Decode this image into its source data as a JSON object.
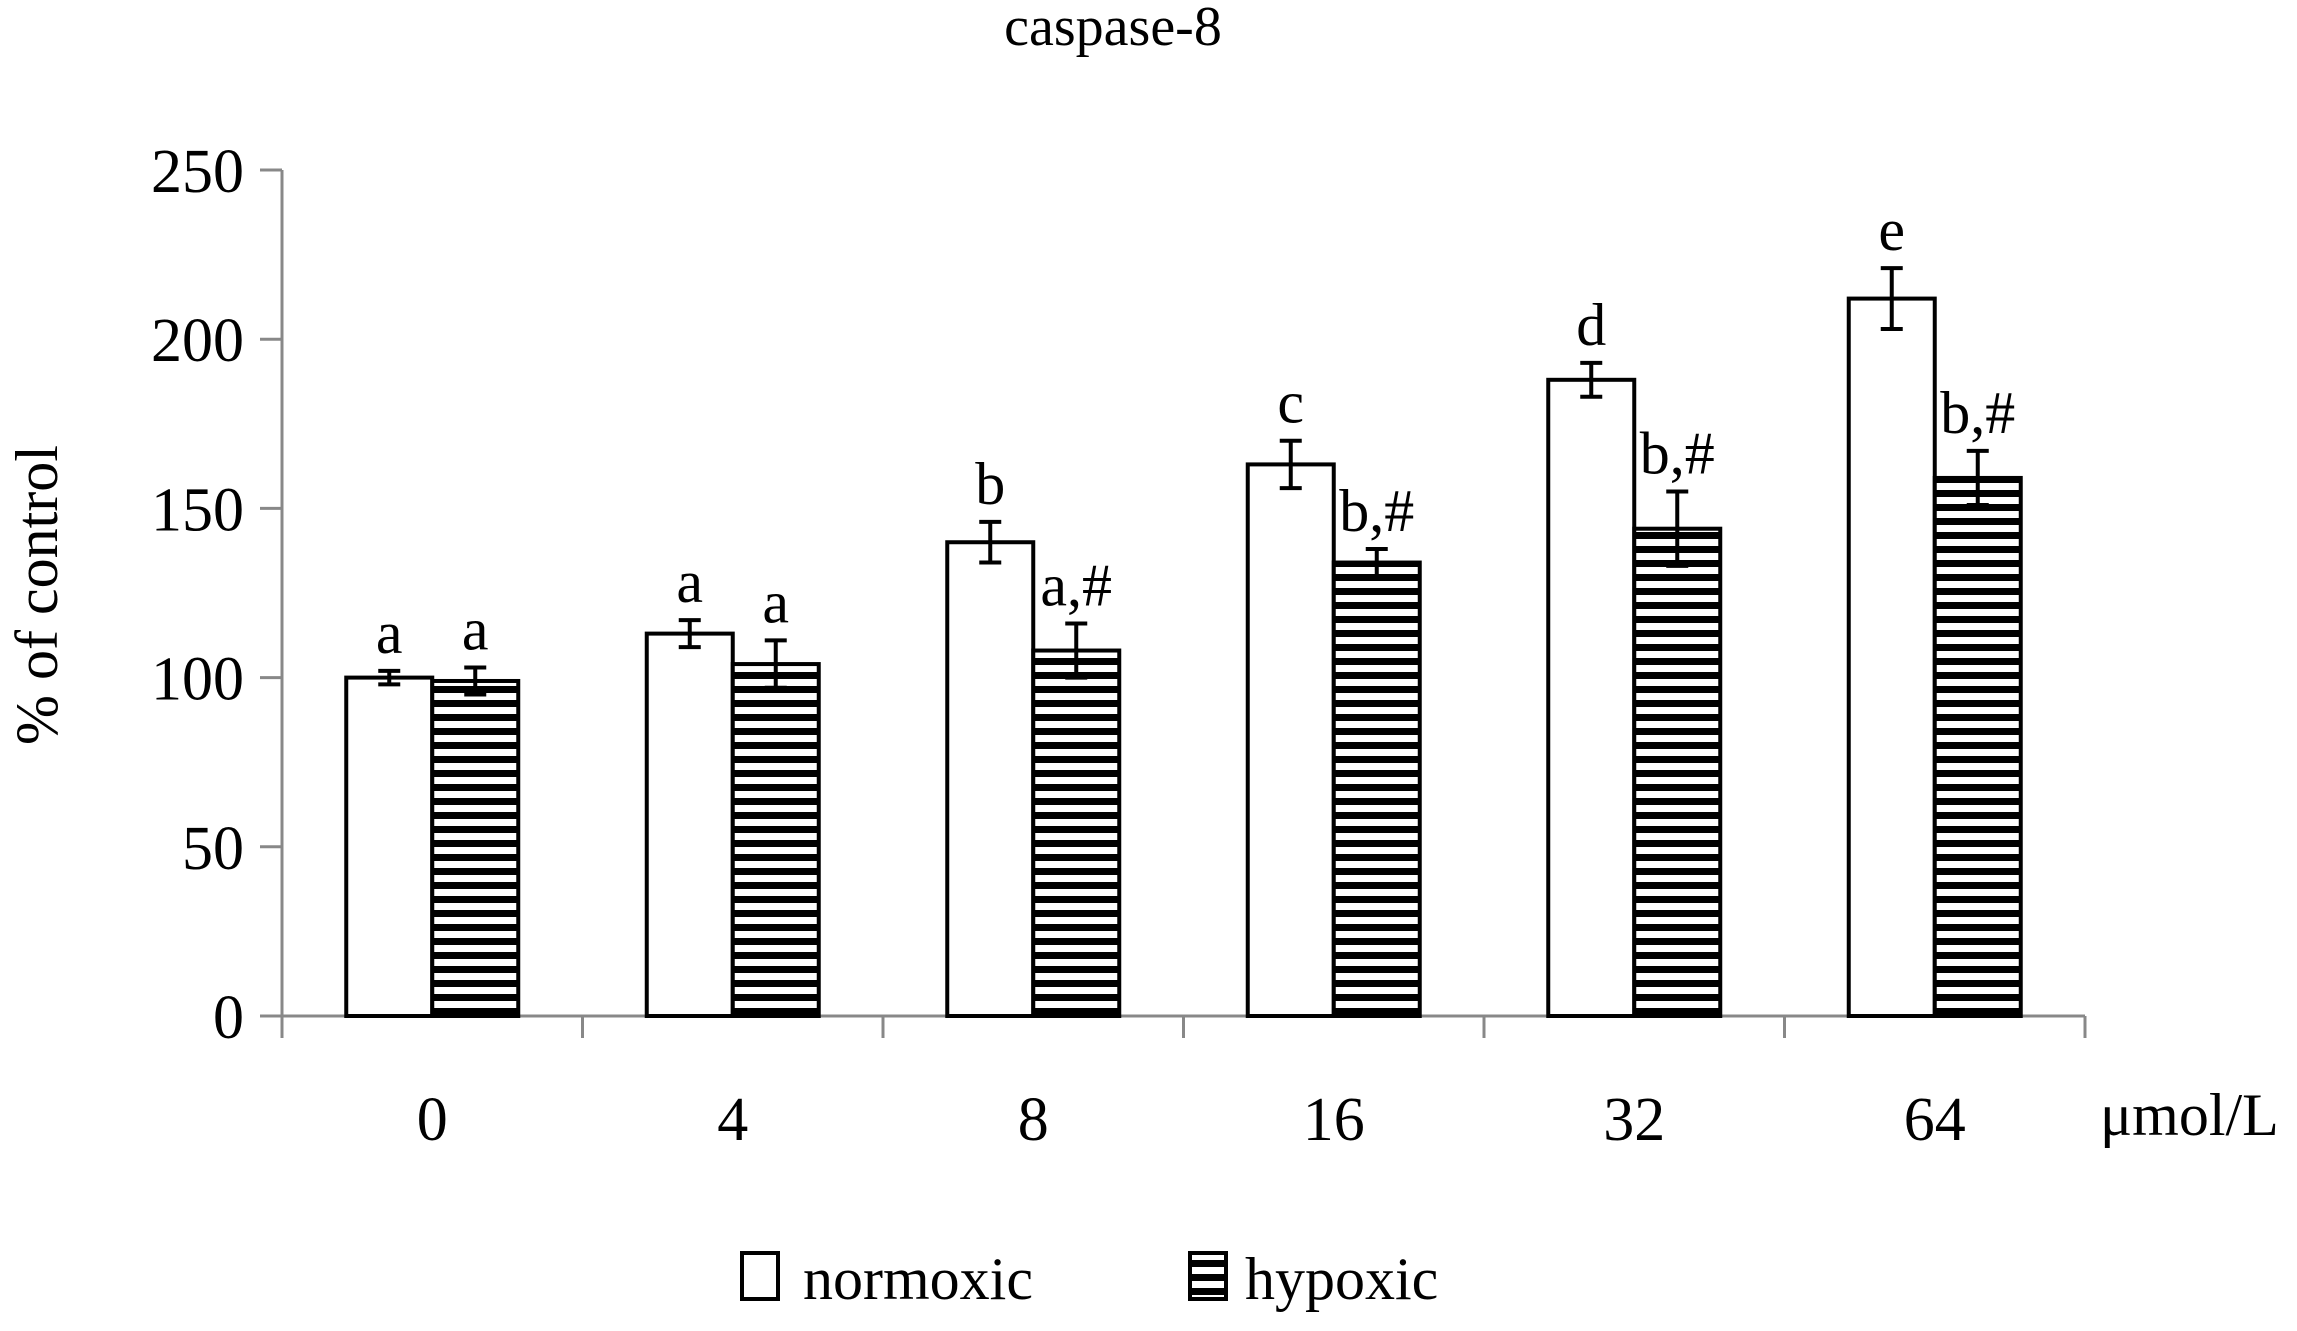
{
  "chart_data": {
    "type": "bar",
    "title": "caspase-8",
    "ylabel": "% of control",
    "xunit": "μmol/L",
    "ylim": [
      0,
      250
    ],
    "yticks": [
      "0",
      "50",
      "100",
      "150",
      "200",
      "250"
    ],
    "categories": [
      "0",
      "4",
      "8",
      "16",
      "32",
      "64"
    ],
    "legend_position": "bottom",
    "series": [
      {
        "name": "normoxic",
        "pattern": "solid-white",
        "values": [
          100,
          113,
          140,
          163,
          188,
          212
        ],
        "errors": [
          2,
          4,
          6,
          7,
          5,
          9
        ],
        "labels": [
          "a",
          "a",
          "b",
          "c",
          "d",
          "e"
        ]
      },
      {
        "name": "hypoxic",
        "pattern": "horizontal-stripes",
        "values": [
          99,
          104,
          108,
          134,
          144,
          159
        ],
        "errors": [
          4,
          7,
          8,
          4,
          11,
          8
        ],
        "labels": [
          "a",
          "a",
          "a,#",
          "b,#",
          "b,#",
          "b,#"
        ]
      }
    ]
  }
}
